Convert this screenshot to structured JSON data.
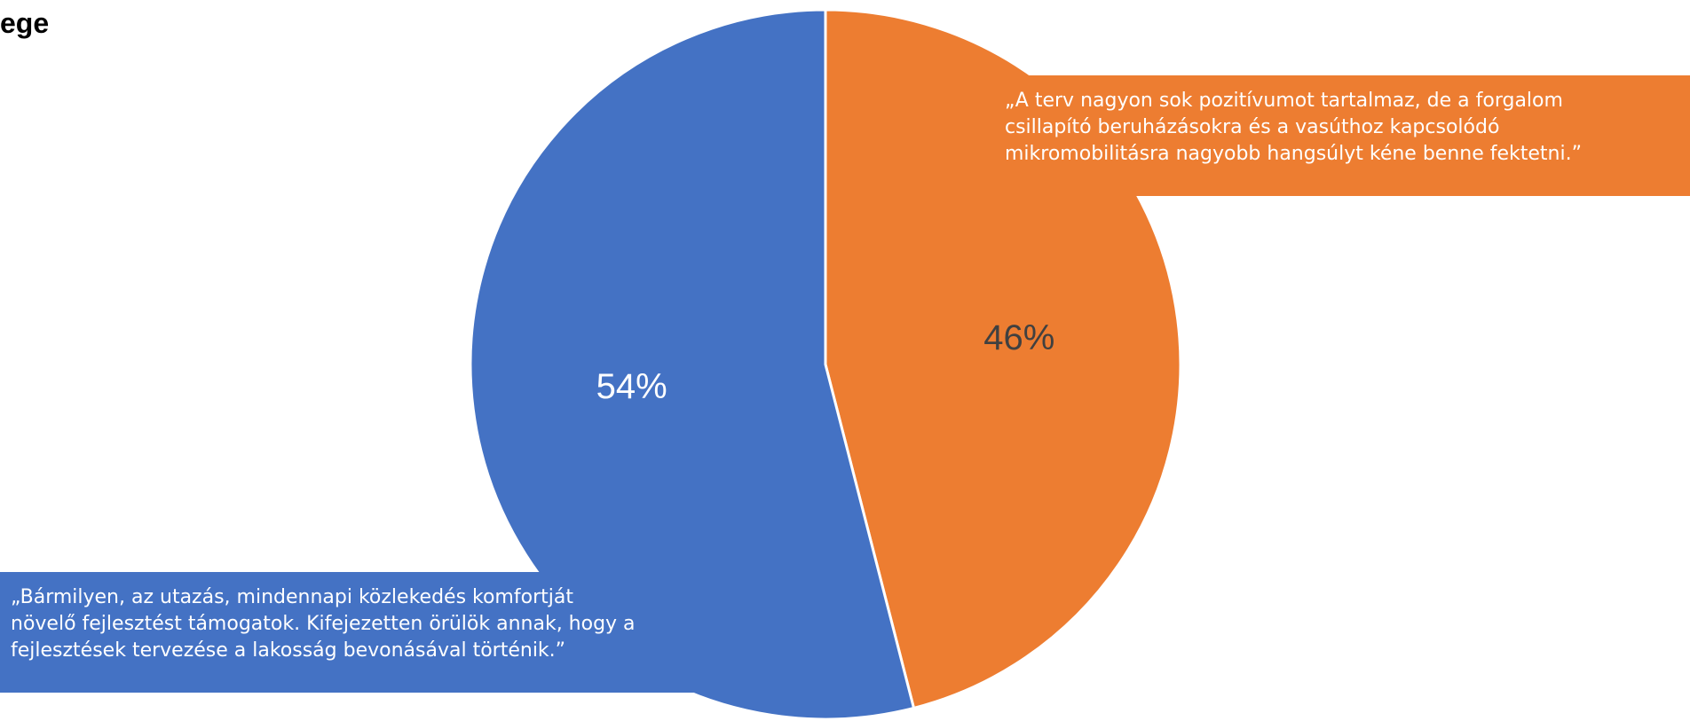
{
  "title": "ege",
  "colors": {
    "orange": "#ED7D31",
    "blue": "#4472C4",
    "separator": "#FFFFFF",
    "label_on_orange": "#404040",
    "label_on_blue": "#FFFFFF",
    "quote_text": "#FFFFFF"
  },
  "chart_data": {
    "type": "pie",
    "title": "",
    "start_angle_deg": 0,
    "direction": "clockwise",
    "slices": [
      {
        "label": "46%",
        "value": 46,
        "color": "#ED7D31"
      },
      {
        "label": "54%",
        "value": 54,
        "color": "#4472C4"
      }
    ]
  },
  "quotes": {
    "orange": {
      "lines": [
        "„A terv nagyon sok pozitívumot tartalmaz, de a forgalom",
        "csillapító beruházásokra és a vasúthoz kapcsolódó",
        "mikromobilitásra nagyobb hangsúlyt kéne benne fektetni.”"
      ]
    },
    "blue": {
      "lines": [
        "„Bármilyen, az utazás, mindennapi közlekedés komfortját",
        "növelő fejlesztést támogatok. Kifejezetten örülök annak, hogy a",
        "fejlesztések tervezése a lakosság bevonásával történik.”"
      ]
    }
  }
}
